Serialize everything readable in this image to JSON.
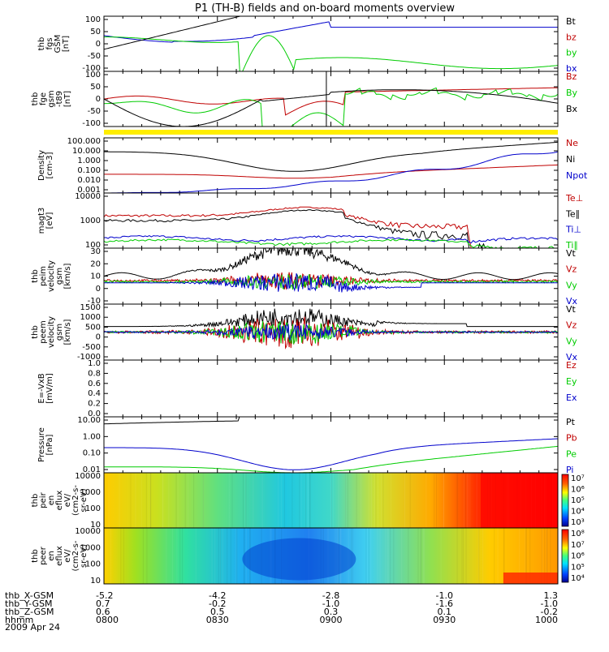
{
  "title": "P1 (TH-B) fields and on-board moments overview",
  "colors": {
    "black": "#000000",
    "red": "#c00000",
    "green": "#00cc00",
    "blue": "#0000cc",
    "yellow": "#ffee00"
  },
  "footer": {
    "rows": [
      {
        "label": "thb_X-GSM",
        "values": [
          "-5.2",
          "-4.2",
          "-2.8",
          "-1.0",
          "1.3"
        ]
      },
      {
        "label": "thb_Y-GSM",
        "values": [
          "0.7",
          "-0.2",
          "-1.0",
          "-1.6",
          "-1.0"
        ]
      },
      {
        "label": "thb_Z-GSM",
        "values": [
          "0.6",
          "0.5",
          "0.3",
          "0.1",
          "-0.2"
        ]
      },
      {
        "label": "hhmm",
        "values": [
          "0800",
          "0830",
          "0900",
          "0930",
          "1000"
        ]
      }
    ],
    "date": "2009 Apr 24"
  },
  "chart_data": [
    {
      "type": "line",
      "id": "p1",
      "ylabel": [
        "thb",
        "fgs",
        "GSM",
        "[nT]"
      ],
      "ylim": [
        -100,
        100
      ],
      "yticks": [
        "100",
        "50",
        "0",
        "-50",
        "-100"
      ],
      "legend": [
        {
          "name": "Bt",
          "color": "black"
        },
        {
          "name": "bz",
          "color": "red"
        },
        {
          "name": "by",
          "color": "green"
        },
        {
          "name": "bx",
          "color": "blue"
        }
      ],
      "x": [
        "0800",
        "0830",
        "0900",
        "0930",
        "1000"
      ]
    },
    {
      "type": "line",
      "id": "p2",
      "ylabel": [
        "thb",
        "fge",
        "gsm",
        "-t89",
        "[nT]"
      ],
      "ylim": [
        -120,
        120
      ],
      "yticks": [
        "100",
        "50",
        "0",
        "-50",
        "-100"
      ],
      "legend": [
        {
          "name": "Bz",
          "color": "red"
        },
        {
          "name": "By",
          "color": "green"
        },
        {
          "name": "Bx",
          "color": "black"
        }
      ]
    },
    {
      "type": "line",
      "id": "p3",
      "ylabel": [
        "Density",
        "[cm-3]"
      ],
      "log": true,
      "ylim": [
        0.0005,
        200
      ],
      "yticks": [
        "100.000",
        "10.000",
        "1.000",
        "0.100",
        "0.010",
        "0.001"
      ],
      "legend": [
        {
          "name": "Ne",
          "color": "red"
        },
        {
          "name": "Ni",
          "color": "black"
        },
        {
          "name": "Npot",
          "color": "blue"
        }
      ]
    },
    {
      "type": "line",
      "id": "p4",
      "ylabel": [
        "magt3",
        "[eV]"
      ],
      "log": true,
      "ylim": [
        100,
        10000
      ],
      "yticks": [
        "10000",
        "1000",
        "100"
      ],
      "legend": [
        {
          "name": "Te⊥",
          "color": "red"
        },
        {
          "name": "Te∥",
          "color": "black"
        },
        {
          "name": "Ti⊥",
          "color": "blue"
        },
        {
          "name": "Ti∥",
          "color": "green"
        }
      ]
    },
    {
      "type": "line",
      "id": "p5",
      "ylabel": [
        "thb",
        "peim",
        "velocity",
        "gsm",
        "[km/s]"
      ],
      "ylim": [
        -20,
        30
      ],
      "yticks": [
        "30",
        "20",
        "10",
        "0",
        "-10"
      ],
      "legend": [
        {
          "name": "Vt",
          "color": "black"
        },
        {
          "name": "Vz",
          "color": "red"
        },
        {
          "name": "Vy",
          "color": "green"
        },
        {
          "name": "Vx",
          "color": "blue"
        }
      ]
    },
    {
      "type": "line",
      "id": "p6",
      "ylabel": [
        "thb",
        "peem",
        "velocity",
        "gsm",
        "[km/s]"
      ],
      "ylim": [
        -1500,
        1500
      ],
      "yticks": [
        "1500",
        "1000",
        "500",
        "0",
        "-500",
        "-1000"
      ],
      "legend": [
        {
          "name": "Vt",
          "color": "black"
        },
        {
          "name": "Vz",
          "color": "red"
        },
        {
          "name": "Vy",
          "color": "green"
        },
        {
          "name": "Vx",
          "color": "blue"
        }
      ]
    },
    {
      "type": "line",
      "id": "p7",
      "ylabel": [
        "E=-VxB",
        "[mV/m]"
      ],
      "ylim": [
        0,
        1
      ],
      "yticks": [
        "1.0",
        "0.8",
        "0.6",
        "0.4",
        "0.2",
        "0.0"
      ],
      "legend": [
        {
          "name": "Ez",
          "color": "red"
        },
        {
          "name": "Ey",
          "color": "green"
        },
        {
          "name": "Ex",
          "color": "blue"
        }
      ]
    },
    {
      "type": "line",
      "id": "p8",
      "ylabel": [
        "Pressure",
        "[nPa]"
      ],
      "log": true,
      "ylim": [
        0.005,
        30
      ],
      "yticks": [
        "10.00",
        "1.00",
        "0.10",
        "0.01"
      ],
      "legend": [
        {
          "name": "Pt",
          "color": "black"
        },
        {
          "name": "Pb",
          "color": "red"
        },
        {
          "name": "Pe",
          "color": "green"
        },
        {
          "name": "Pi",
          "color": "blue"
        }
      ]
    },
    {
      "type": "heatmap",
      "id": "p9",
      "ylabel": [
        "thb",
        "peir",
        "en",
        "eflux",
        "eV/",
        "(cm2-s-",
        "sr-eV)"
      ],
      "yticks": [
        "10000",
        "1000",
        "100",
        "10"
      ],
      "colorbar": [
        "10⁷",
        "10⁶",
        "10⁵",
        "10⁴",
        "10³"
      ]
    },
    {
      "type": "heatmap",
      "id": "p10",
      "ylabel": [
        "thb",
        "peer",
        "en",
        "eflux",
        "eV/",
        "(cm2-s-",
        "sr-eV)"
      ],
      "yticks": [
        "10000",
        "1000",
        "100",
        "10"
      ],
      "colorbar": [
        "10⁸",
        "10⁷",
        "10⁶",
        "10⁵",
        "10⁴"
      ]
    }
  ]
}
